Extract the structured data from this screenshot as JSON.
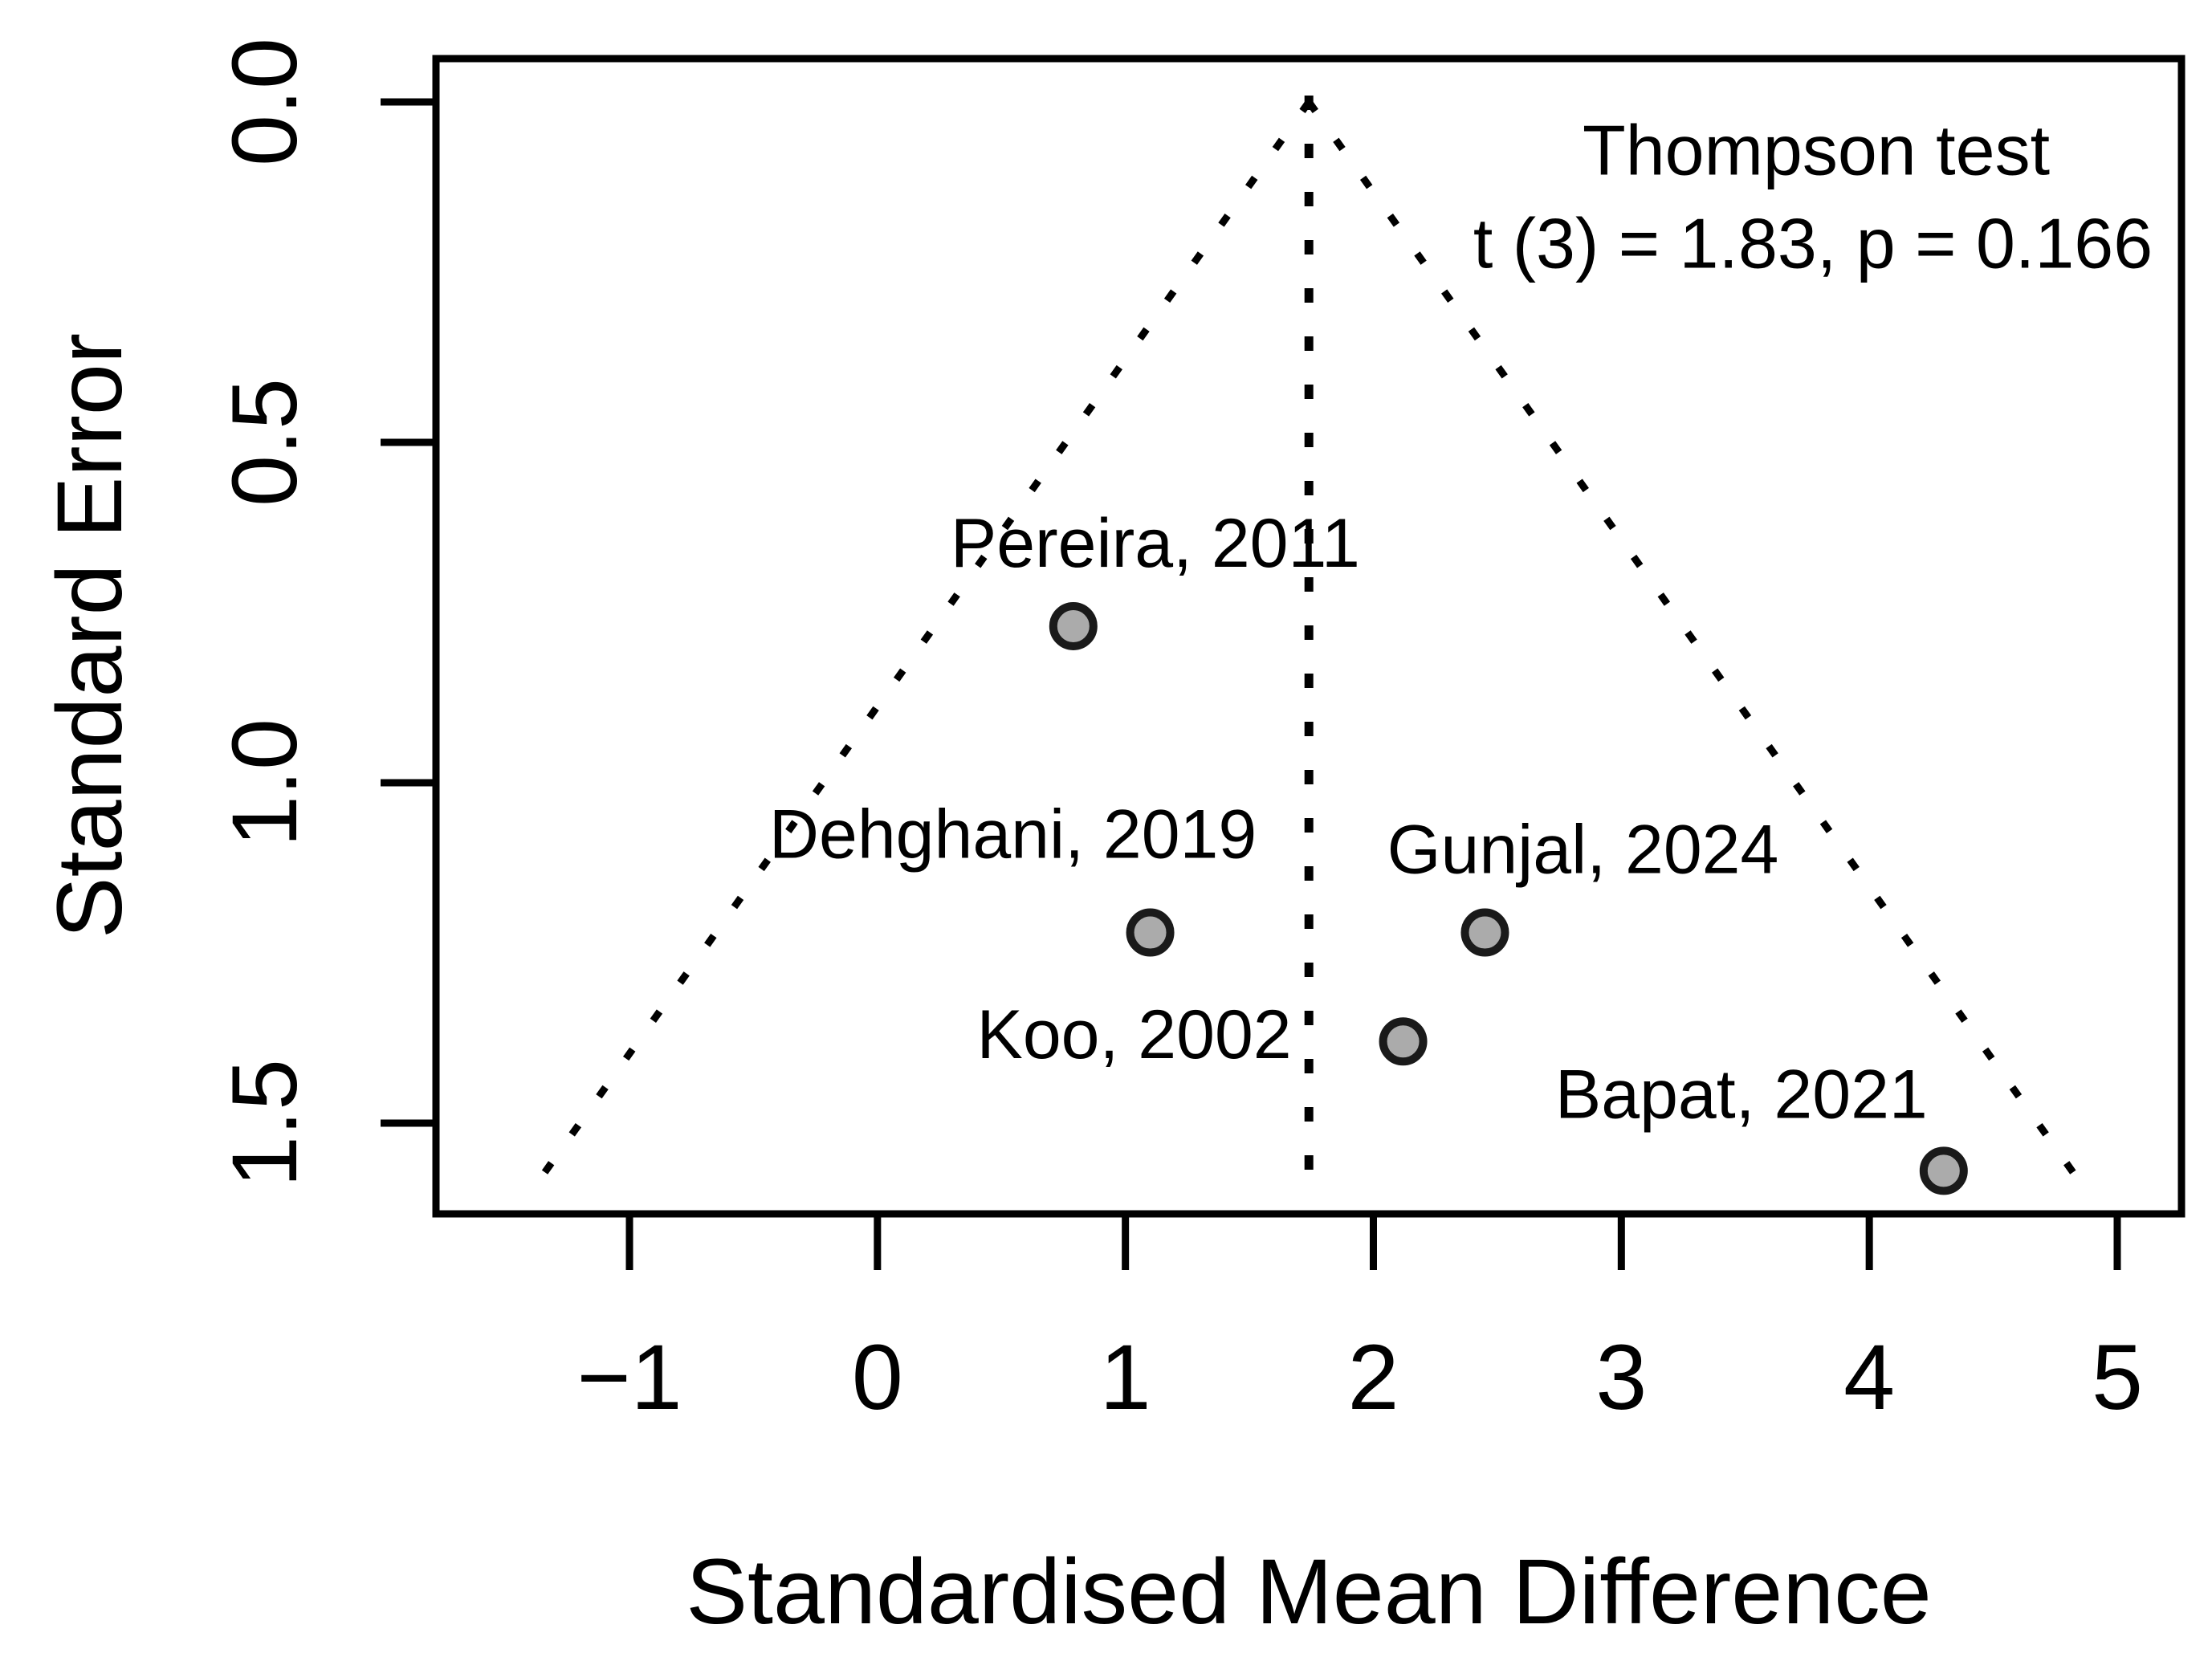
{
  "figure": {
    "kind": "funnel-plot",
    "background": "#ffffff"
  },
  "annotation": {
    "line1": "Thompson test",
    "line2": "t (3) = 1.83, p = 0.166"
  },
  "axes": {
    "x": {
      "label": "Standardised Mean Difference",
      "tick_values": [
        -1,
        0,
        1,
        2,
        3,
        4,
        5
      ],
      "tick_labels": [
        "−1",
        "0",
        "1",
        "2",
        "3",
        "4",
        "5"
      ]
    },
    "y": {
      "label": "Standard Error",
      "tick_values": [
        0,
        0.5,
        1.0,
        1.5
      ],
      "tick_labels": [
        "0.0",
        "0.5",
        "1.0",
        "1.5"
      ]
    }
  },
  "chart_data": {
    "type": "scatter",
    "title": "",
    "xlabel": "Standardised Mean Difference",
    "ylabel": "Standard Error",
    "xlim": [
      -1.78,
      5.26
    ],
    "ylim": [
      0,
      1.63
    ],
    "y_inverted": true,
    "grid": false,
    "x_ticks": [
      -1,
      0,
      1,
      2,
      3,
      4,
      5
    ],
    "y_ticks": [
      0,
      0.5,
      1.0,
      1.5
    ],
    "studies": [
      {
        "label": "Pereira, 2011",
        "smd": 0.79,
        "se": 0.77,
        "label_offset": [
          102,
          -103
        ]
      },
      {
        "label": "Dehghani, 2019",
        "smd": 1.1,
        "se": 1.22,
        "label_offset": [
          -171,
          -122
        ]
      },
      {
        "label": "Gunjal, 2024",
        "smd": 2.45,
        "se": 1.22,
        "label_offset": [
          122,
          -103
        ]
      },
      {
        "label": "Koo, 2002",
        "smd": 2.12,
        "se": 1.38,
        "label_offset": [
          -335,
          -8
        ]
      },
      {
        "label": "Bapat, 2021",
        "smd": 4.3,
        "se": 1.57,
        "label_offset": [
          -252,
          -95
        ]
      }
    ],
    "funnel": {
      "center_smd": 1.74,
      "ci_multiplier": 1.96,
      "max_se_drawn": 1.58,
      "line_style": "dotted"
    }
  },
  "colors": {
    "point_fill": "#ababab",
    "point_stroke": "#1a1a1a",
    "axis_line": "#000000",
    "dotted_line": "#000000",
    "text": "#000000",
    "background": "#ffffff"
  }
}
